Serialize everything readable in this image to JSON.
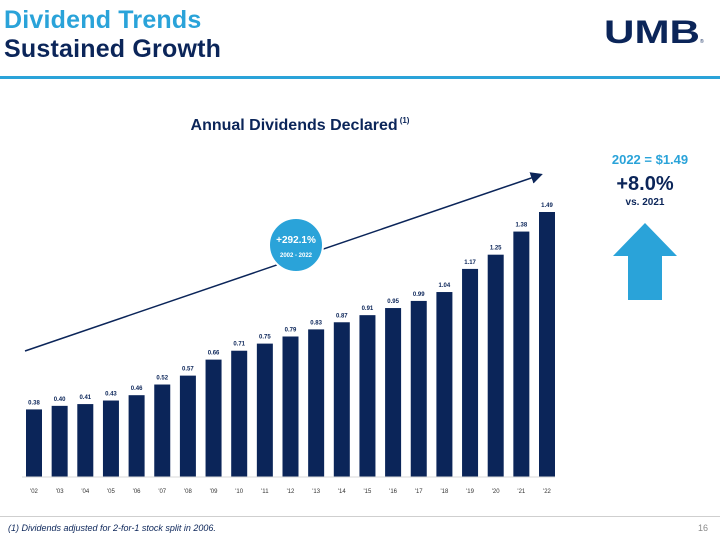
{
  "header": {
    "title_line1": "Dividend Trends",
    "title_line2": "Sustained Growth",
    "logo_text": "UMB",
    "logo_reg": "®"
  },
  "callout": {
    "headline": "2022 = $1.49",
    "percent": "+8.0%",
    "comparison": "vs. 2021",
    "arrow_icon": "up-arrow-icon",
    "arrow_color": "#2aa3d9"
  },
  "growth_badge": {
    "percent": "+292.1%",
    "period": "2002 - 2022",
    "color": "#2aa3d9"
  },
  "footer": {
    "footnote": "(1) Dividends adjusted for 2-for-1 stock split in 2006.",
    "page_number": "16"
  },
  "colors": {
    "navy": "#0b2559",
    "accent": "#2aa3d9"
  },
  "chart_data": {
    "type": "bar",
    "title": "Annual Dividends Declared",
    "title_footnote_marker": "(1)",
    "categories": [
      "'02",
      "'03",
      "'04",
      "'05",
      "'06",
      "'07",
      "'08",
      "'09",
      "'10",
      "'11",
      "'12",
      "'13",
      "'14",
      "'15",
      "'16",
      "'17",
      "'18",
      "'19",
      "'20",
      "'21",
      "'22"
    ],
    "values": [
      0.38,
      0.4,
      0.41,
      0.43,
      0.46,
      0.52,
      0.57,
      0.66,
      0.71,
      0.75,
      0.79,
      0.83,
      0.87,
      0.91,
      0.95,
      0.99,
      1.04,
      1.17,
      1.25,
      1.38,
      1.49
    ],
    "value_labels": [
      "0.38",
      "0.40",
      "0.41",
      "0.43",
      "0.46",
      "0.52",
      "0.57",
      "0.66",
      "0.71",
      "0.75",
      "0.79",
      "0.83",
      "0.87",
      "0.91",
      "0.95",
      "0.99",
      "1.04",
      "1.17",
      "1.25",
      "1.38",
      "1.49"
    ],
    "ylim": [
      0,
      1.55
    ],
    "grid": false,
    "legend": "none",
    "trend_arrow": true
  }
}
